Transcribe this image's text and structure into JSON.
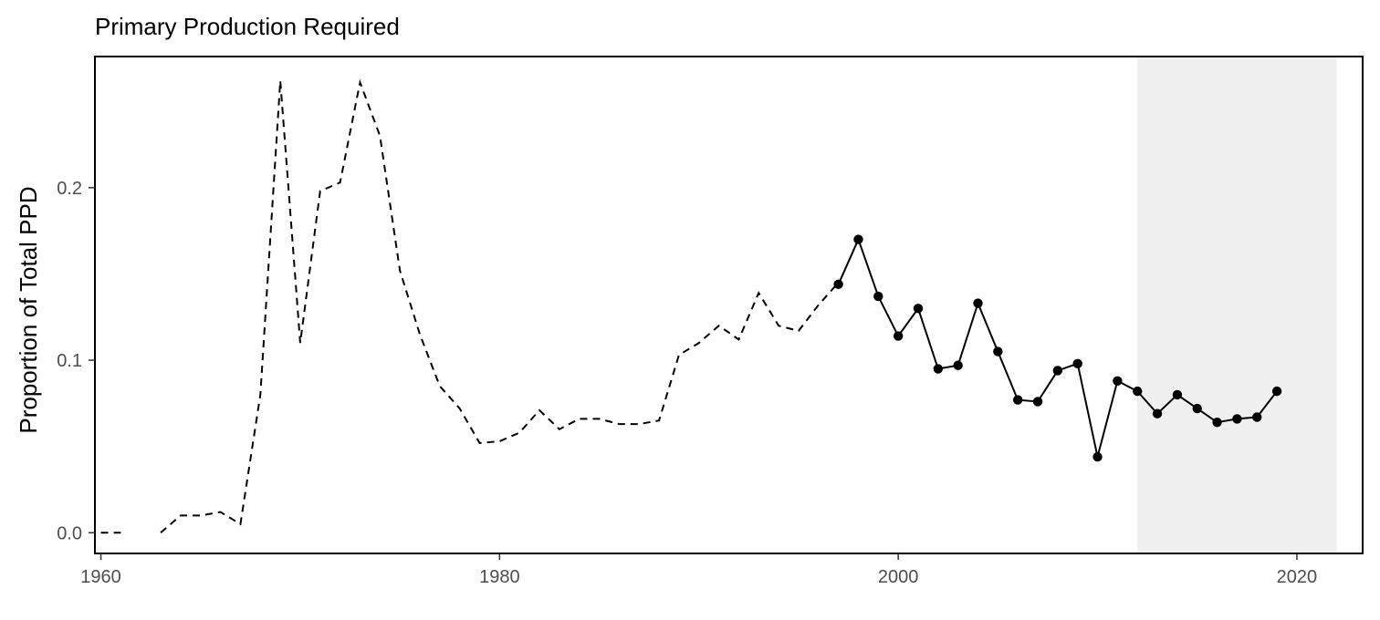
{
  "chart_data": {
    "type": "line",
    "title": "Primary Production Required",
    "xlabel": "",
    "ylabel": "Proportion of Total PPD",
    "xlim": [
      1959.7,
      2023.3
    ],
    "ylim": [
      -0.012,
      0.276
    ],
    "x_ticks": [
      1960,
      1980,
      2000,
      2020
    ],
    "x_tick_labels": [
      "1960",
      "1980",
      "2000",
      "2020"
    ],
    "y_ticks": [
      0.0,
      0.1,
      0.2
    ],
    "y_tick_labels": [
      "0.0",
      "0.1",
      "0.2"
    ],
    "grid": false,
    "shaded_region": {
      "x_start": 2012,
      "x_end": 2022,
      "color": "#f0f0f0"
    },
    "series": [
      {
        "style": "dashed",
        "segments": [
          {
            "x": [
              1960,
              1961
            ],
            "y": [
              0.0,
              0.0
            ]
          },
          {
            "x": [
              1963,
              1964,
              1965,
              1966,
              1967,
              1968,
              1969,
              1970,
              1971,
              1972,
              1973,
              1974,
              1975,
              1976,
              1977,
              1978,
              1979,
              1980,
              1981,
              1982,
              1983,
              1984,
              1985,
              1986,
              1987,
              1988,
              1989,
              1990,
              1991,
              1992,
              1993,
              1994,
              1995,
              1996,
              1997
            ],
            "y": [
              0.0,
              0.01,
              0.01,
              0.012,
              0.005,
              0.08,
              0.262,
              0.11,
              0.198,
              0.203,
              0.261,
              0.23,
              0.152,
              0.115,
              0.085,
              0.072,
              0.052,
              0.053,
              0.058,
              0.071,
              0.06,
              0.066,
              0.066,
              0.063,
              0.063,
              0.065,
              0.103,
              0.11,
              0.12,
              0.112,
              0.139,
              0.12,
              0.117,
              0.132,
              0.145
            ]
          }
        ]
      },
      {
        "style": "solid",
        "markers": true,
        "x": [
          1997,
          1998,
          1999,
          2000,
          2001,
          2002,
          2003,
          2004,
          2005,
          2006,
          2007,
          2008,
          2009,
          2010,
          2011,
          2012,
          2013,
          2014,
          2015,
          2016,
          2017,
          2018,
          2019
        ],
        "y": [
          0.144,
          0.17,
          0.137,
          0.114,
          0.13,
          0.095,
          0.097,
          0.133,
          0.105,
          0.077,
          0.076,
          0.094,
          0.098,
          0.044,
          0.088,
          0.082,
          0.069,
          0.08,
          0.072,
          0.064,
          0.066,
          0.067,
          0.082
        ]
      }
    ]
  }
}
